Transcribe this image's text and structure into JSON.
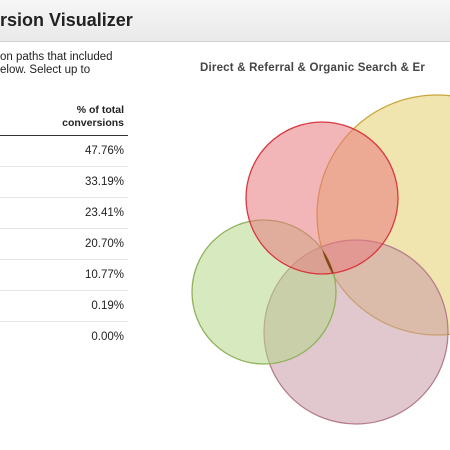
{
  "header": {
    "title": "rsion Visualizer"
  },
  "description": {
    "lines": [
      "on paths that included",
      "elow. Select up to"
    ]
  },
  "table": {
    "column_header_lines": [
      "% of total",
      "conversions"
    ],
    "rows": [
      "47.76%",
      "33.19%",
      "23.41%",
      "20.70%",
      "10.77%",
      "0.19%",
      "0.00%"
    ]
  },
  "venn": {
    "title": "Direct & Referral & Organic Search & Er",
    "sets": [
      {
        "name": "red-set",
        "fill": "#e77a7f",
        "stroke": "#d9383f"
      },
      {
        "name": "yellow-set",
        "fill": "#e6cf6e",
        "stroke": "#c9a43a"
      },
      {
        "name": "green-set",
        "fill": "#b7d78a",
        "stroke": "#8fb15a"
      },
      {
        "name": "mauve-set",
        "fill": "#c99aa5",
        "stroke": "#b57e8b"
      }
    ],
    "intersection_color": "#7a3d08"
  }
}
